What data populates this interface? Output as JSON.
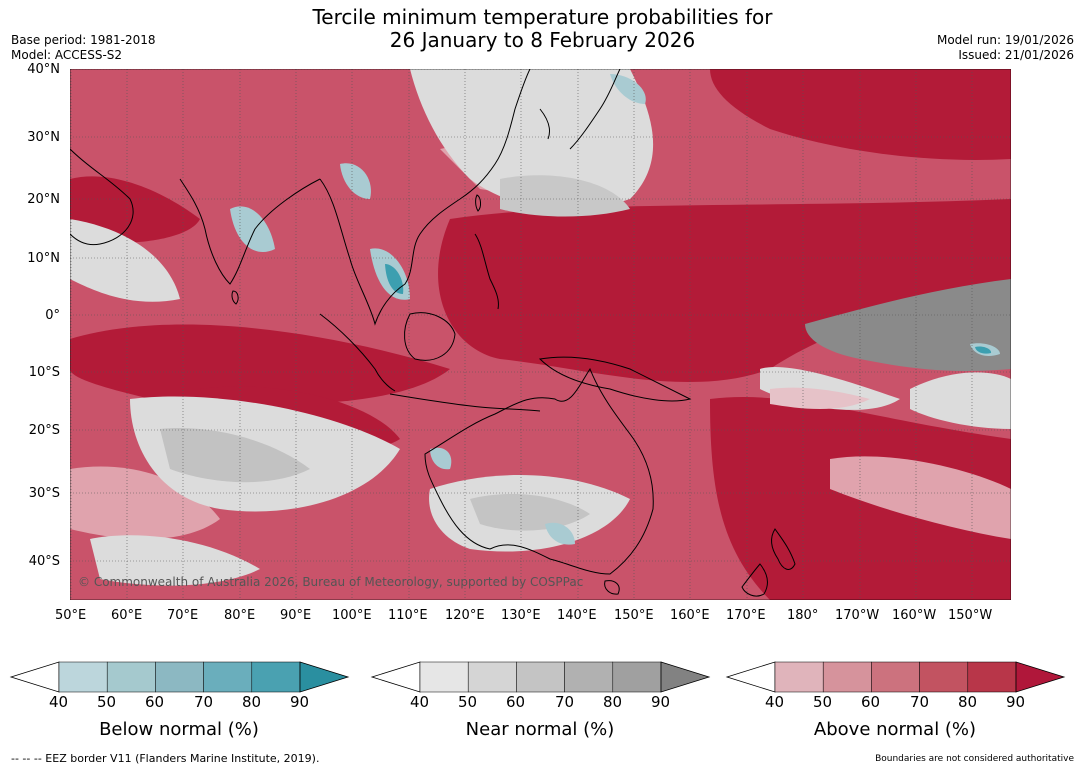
{
  "header": {
    "title_line1": "Tercile minimum temperature probabilities for",
    "title_line2": "26 January to 8 February 2026",
    "base_period": "Base period: 1981-2018",
    "model": "Model: ACCESS-S2",
    "model_run": "Model run: 19/01/2026",
    "issued": "Issued: 21/01/2026"
  },
  "map": {
    "copyright": "© Commonwealth of Australia 2026, Bureau of Meteorology, supported by COSPPac",
    "lat_labels": [
      "40°N",
      "30°N",
      "20°N",
      "10°N",
      "0°",
      "10°S",
      "20°S",
      "30°S",
      "40°S"
    ],
    "lon_labels": [
      "50°E",
      "60°E",
      "70°E",
      "80°E",
      "90°E",
      "100°E",
      "110°E",
      "120°E",
      "130°E",
      "140°E",
      "150°E",
      "160°E",
      "170°E",
      "180°",
      "170°W",
      "160°W",
      "150°W"
    ],
    "colors": {
      "above_dark": "#b31b38",
      "above_mid": "#cd5a6e",
      "above_light": "#e0a3ad",
      "near_light": "#dcdcdc",
      "near_dark": "#8a8a8a",
      "below_light": "#a9cbd2",
      "below_dark": "#3c9fb0",
      "land_outline": "#000000"
    }
  },
  "legends": [
    {
      "label": "Below normal (%)",
      "ticks": [
        "40",
        "50",
        "60",
        "70",
        "80",
        "90"
      ],
      "colors": [
        "#ffffff",
        "#bcd6dc",
        "#a5c9ce",
        "#8cb8c2",
        "#6aaebc",
        "#4aa1b1",
        "#2a8fa0"
      ]
    },
    {
      "label": "Near normal (%)",
      "ticks": [
        "40",
        "50",
        "60",
        "70",
        "80",
        "90"
      ],
      "colors": [
        "#ffffff",
        "#e6e6e6",
        "#d5d5d5",
        "#c4c4c4",
        "#b1b1b1",
        "#a0a0a0",
        "#828282"
      ]
    },
    {
      "label": "Above normal (%)",
      "ticks": [
        "40",
        "50",
        "60",
        "70",
        "80",
        "90"
      ],
      "colors": [
        "#ffffff",
        "#e0b4bb",
        "#d6939c",
        "#cc727e",
        "#c25361",
        "#b83649",
        "#b0173a"
      ]
    }
  ],
  "footer": {
    "eez_note": "--  --  -- EEZ border V11 (Flanders Marine Institute, 2019).",
    "boundaries_note": "Boundaries are not considered authoritative"
  }
}
